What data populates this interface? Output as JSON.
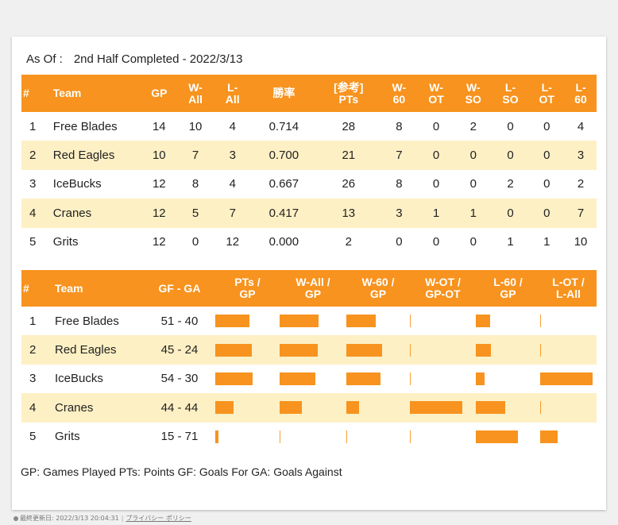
{
  "as_of": {
    "label": "As Of :",
    "value": "2nd Half Completed - 2022/3/13"
  },
  "standings": {
    "headers": [
      "#",
      "Team",
      "GP",
      "W-\nAll",
      "L-\nAll",
      "勝率",
      "[参考]\nPTs",
      "W-\n60",
      "W-\nOT",
      "W-\nSO",
      "L-\nSO",
      "L-\nOT",
      "L-\n60"
    ],
    "rows": [
      [
        "1",
        "Free Blades",
        "14",
        "10",
        "4",
        "0.714",
        "28",
        "8",
        "0",
        "2",
        "0",
        "0",
        "4"
      ],
      [
        "2",
        "Red Eagles",
        "10",
        "7",
        "3",
        "0.700",
        "21",
        "7",
        "0",
        "0",
        "0",
        "0",
        "3"
      ],
      [
        "3",
        "IceBucks",
        "12",
        "8",
        "4",
        "0.667",
        "26",
        "8",
        "0",
        "0",
        "2",
        "0",
        "2"
      ],
      [
        "4",
        "Cranes",
        "12",
        "5",
        "7",
        "0.417",
        "13",
        "3",
        "1",
        "1",
        "0",
        "0",
        "7"
      ],
      [
        "5",
        "Grits",
        "12",
        "0",
        "12",
        "0.000",
        "2",
        "0",
        "0",
        "0",
        "1",
        "1",
        "10"
      ]
    ]
  },
  "ratios": {
    "headers": [
      "#",
      "Team",
      "GF - GA",
      "PTs /\nGP",
      "W-All /\nGP",
      "W-60 /\nGP",
      "W-OT /\nGP-OT",
      "L-60 /\nGP",
      "L-OT /\nL-All"
    ],
    "rows": [
      {
        "rank": "1",
        "team": "Free Blades",
        "gfga": "51 - 40",
        "bars": [
          0.667,
          0.714,
          0.571,
          0.0,
          0.286,
          0.0
        ]
      },
      {
        "rank": "2",
        "team": "Red Eagles",
        "gfga": "45 - 24",
        "bars": [
          0.7,
          0.7,
          0.7,
          0.0,
          0.3,
          0.0
        ]
      },
      {
        "rank": "3",
        "team": "IceBucks",
        "gfga": "54 - 30",
        "bars": [
          0.722,
          0.667,
          0.667,
          0.0,
          0.167,
          1.0
        ]
      },
      {
        "rank": "4",
        "team": "Cranes",
        "gfga": "44 - 44",
        "bars": [
          0.361,
          0.417,
          0.25,
          1.0,
          0.583,
          0.0
        ]
      },
      {
        "rank": "5",
        "team": "Grits",
        "gfga": "15 - 71",
        "bars": [
          0.056,
          0.0,
          0.0,
          0.0,
          0.833,
          0.333
        ]
      }
    ]
  },
  "legend": "GP: Games Played  PTs: Points  GF: Goals For  GA: Goals Against",
  "footer": {
    "updated": "最終更新日: 2022/3/13 20:04:31",
    "privacy": "プライバシー ポリシー"
  },
  "colors": {
    "accent": "#f7931e",
    "stripe": "#fdf0c4"
  }
}
